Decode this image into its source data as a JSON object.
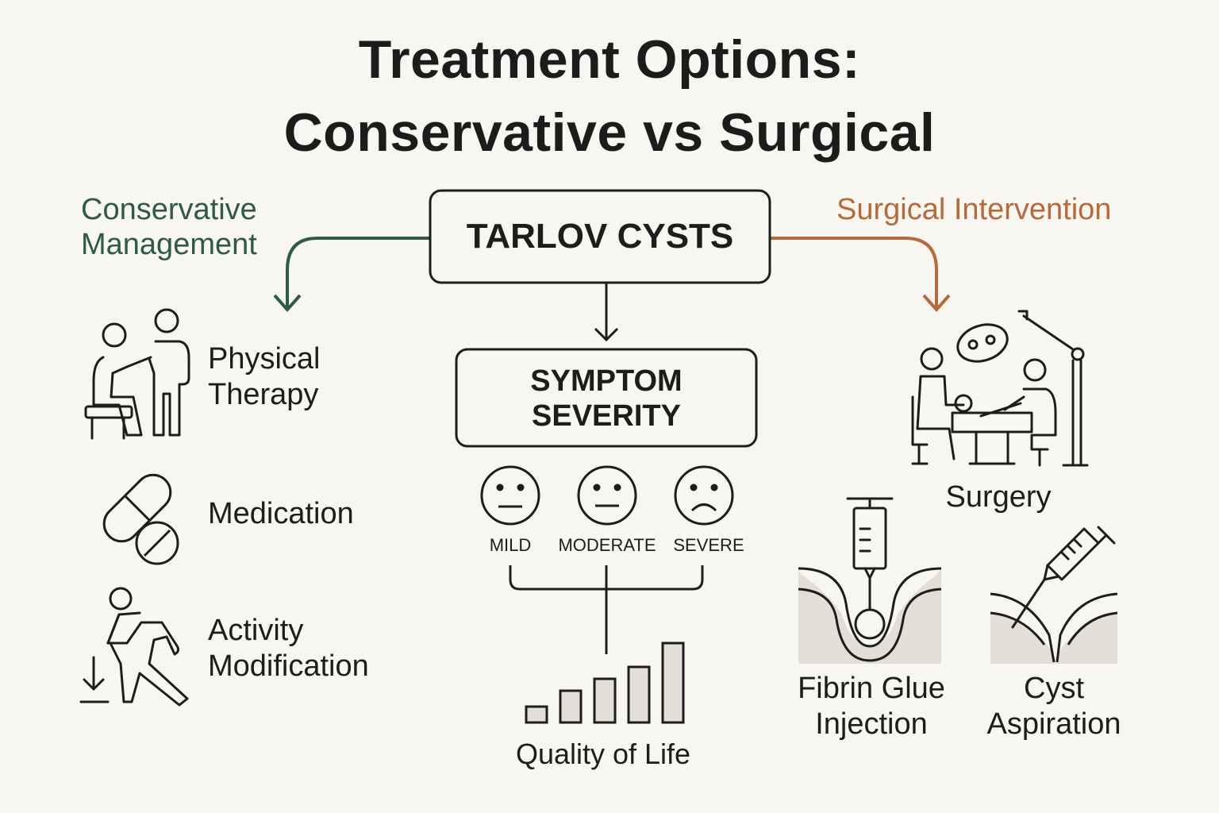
{
  "title": {
    "line1": "Treatment Options:",
    "line2": "Conservative vs Surgical"
  },
  "center_box": "TARLOV CYSTS",
  "severity_box": {
    "line1": "SYMPTOM",
    "line2": "SEVERITY"
  },
  "severity_levels": [
    "MILD",
    "MODERATE",
    "SEVERE"
  ],
  "quality_of_life": {
    "label": "Quality of Life",
    "bar_levels": [
      0.2,
      0.4,
      0.55,
      0.7,
      1.0
    ]
  },
  "conservative": {
    "heading_line1": "Conservative",
    "heading_line2": "Management",
    "color": "#2f5a45",
    "items": [
      {
        "icon": "physical-therapy-icon",
        "line1": "Physical",
        "line2": "Therapy"
      },
      {
        "icon": "pill-icon",
        "line1": "Medication",
        "line2": ""
      },
      {
        "icon": "walking-person-icon",
        "line1": "Activity",
        "line2": "Modification"
      }
    ]
  },
  "surgical": {
    "heading": "Surgical Intervention",
    "color": "#b8693a",
    "items": [
      {
        "icon": "surgery-icon",
        "line1": "Surgery",
        "line2": ""
      },
      {
        "icon": "syringe-injection-icon",
        "line1": "Fibrin Glue",
        "line2": "Injection"
      },
      {
        "icon": "syringe-aspiration-icon",
        "line1": "Cyst",
        "line2": "Aspiration"
      }
    ]
  }
}
